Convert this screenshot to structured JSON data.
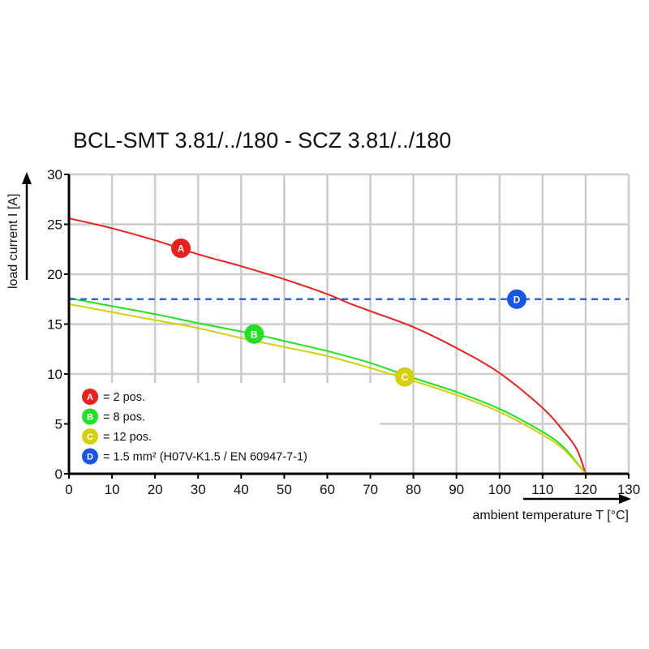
{
  "chart_data": {
    "type": "line",
    "title": "BCL-SMT 3.81/../180 - SCZ 3.81/../180",
    "xlabel": "ambient temperature T [°C]",
    "ylabel": "load current I [A]",
    "xlim": [
      0,
      130
    ],
    "ylim": [
      0,
      30
    ],
    "xticks": [
      "0",
      "10",
      "20",
      "30",
      "40",
      "50",
      "60",
      "70",
      "80",
      "90",
      "100",
      "110",
      "120",
      "130"
    ],
    "yticks": [
      "0",
      "5",
      "10",
      "15",
      "20",
      "25",
      "30"
    ],
    "grid": true,
    "legend_position": "bottom-left",
    "series": [
      {
        "id": "A",
        "name": "= 2 pos.",
        "color": "#e8201e",
        "dashed": false,
        "marker_at": [
          26,
          22.6
        ],
        "x": [
          0,
          10,
          20,
          30,
          40,
          50,
          60,
          65,
          70,
          80,
          90,
          100,
          110,
          115,
          118,
          120
        ],
        "y": [
          25.6,
          24.6,
          23.4,
          22.0,
          20.8,
          19.5,
          18.0,
          17.1,
          16.3,
          14.7,
          12.6,
          10.1,
          6.6,
          4.2,
          2.4,
          0
        ]
      },
      {
        "id": "B",
        "name": "= 8 pos.",
        "color": "#22e022",
        "dashed": false,
        "marker_at": [
          43,
          14.0
        ],
        "x": [
          0,
          10,
          20,
          30,
          43,
          50,
          60,
          70,
          80,
          90,
          100,
          110,
          115,
          120
        ],
        "y": [
          17.6,
          16.8,
          16.0,
          15.1,
          14.0,
          13.3,
          12.3,
          11.1,
          9.6,
          8.2,
          6.5,
          4.2,
          2.6,
          0
        ]
      },
      {
        "id": "C",
        "name": "= 12 pos.",
        "color": "#d4d010",
        "dashed": false,
        "marker_at": [
          78,
          9.7
        ],
        "x": [
          0,
          10,
          20,
          30,
          40,
          50,
          60,
          70,
          80,
          90,
          100,
          110,
          115,
          120
        ],
        "y": [
          17.0,
          16.2,
          15.4,
          14.6,
          13.6,
          12.7,
          11.8,
          10.6,
          9.3,
          7.9,
          6.2,
          3.9,
          2.4,
          0
        ]
      },
      {
        "id": "D",
        "name": "= 1.5 mm² (H07V-K1.5 / EN 60947-7-1)",
        "color": "#1a55e8",
        "dashed": true,
        "marker_at": [
          104,
          17.5
        ],
        "x": [
          0,
          130
        ],
        "y": [
          17.5,
          17.5
        ]
      }
    ]
  }
}
